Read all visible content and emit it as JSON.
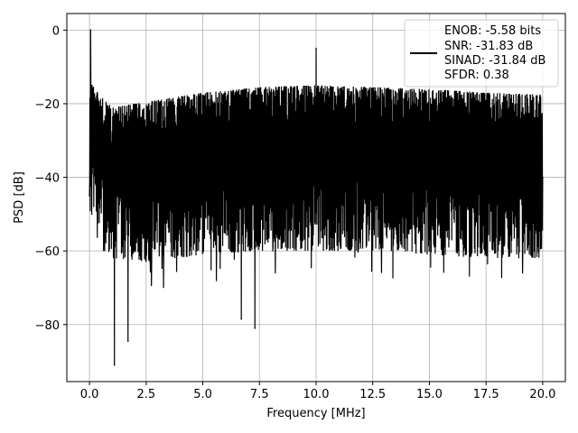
{
  "chart_data": {
    "type": "line",
    "title": "",
    "xlabel": "Frequency [MHz]",
    "ylabel": "PSD [dB]",
    "xlim": [
      -1.0,
      21.0
    ],
    "ylim": [
      -95.5,
      4.5
    ],
    "xticks": [
      0.0,
      2.5,
      5.0,
      7.5,
      10.0,
      12.5,
      15.0,
      17.5,
      20.0
    ],
    "xtick_labels": [
      "0.0",
      "2.5",
      "5.0",
      "7.5",
      "10.0",
      "12.5",
      "15.0",
      "17.5",
      "20.0"
    ],
    "yticks": [
      0,
      -20,
      -40,
      -60,
      -80
    ],
    "ytick_labels": [
      "0",
      "−20",
      "−40",
      "−60",
      "−80"
    ],
    "grid": true,
    "legend_position": "top-right",
    "series": [
      {
        "name": "",
        "color": "#000000",
        "description_points": {
          "x": [
            0.0,
            0.05,
            0.1,
            1.1,
            1.7,
            6.7,
            7.3,
            10.0,
            20.0
          ],
          "y": [
            -45.0,
            0.0,
            -50.0,
            -91.0,
            -84.5,
            -78.5,
            -81.0,
            -5.0,
            -40.0
          ]
        },
        "envelope": {
          "x": [
            0.0,
            1.0,
            2.5,
            5.0,
            7.5,
            10.0,
            12.5,
            15.0,
            17.5,
            20.0
          ],
          "upper": [
            -14.0,
            -21.0,
            -19.5,
            -17.0,
            -15.5,
            -15.0,
            -15.5,
            -16.0,
            -17.0,
            -17.5
          ],
          "lower": [
            -50.0,
            -62.0,
            -63.0,
            -61.0,
            -60.0,
            -60.0,
            -60.0,
            -61.0,
            -62.0,
            -62.0
          ]
        }
      }
    ],
    "legend_lines": [
      "ENOB: -5.58 bits",
      "SNR: -31.83 dB",
      "SINAD: -31.84 dB",
      "SFDR: 0.38"
    ]
  }
}
